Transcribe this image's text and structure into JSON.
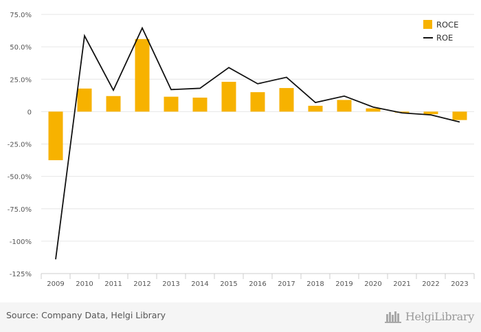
{
  "chart_data": {
    "type": "bar",
    "categories": [
      "2009",
      "2010",
      "2011",
      "2012",
      "2013",
      "2014",
      "2015",
      "2016",
      "2017",
      "2018",
      "2019",
      "2020",
      "2021",
      "2022",
      "2023"
    ],
    "series": [
      {
        "name": "ROCE",
        "type": "bar",
        "color": "#f7b200",
        "values": [
          -37.5,
          17.8,
          12.0,
          56.0,
          11.5,
          10.8,
          23.0,
          15.0,
          18.2,
          4.5,
          9.0,
          2.5,
          -0.8,
          -2.0,
          -6.5
        ]
      },
      {
        "name": "ROE",
        "type": "line",
        "color": "#111111",
        "values": [
          -114,
          58.5,
          16.5,
          64.5,
          17.0,
          18.0,
          34.0,
          21.5,
          26.5,
          7.0,
          12.0,
          3.5,
          -1.0,
          -2.5,
          -8.0
        ]
      }
    ],
    "ylim": [
      -125,
      75
    ],
    "yticks": [
      "75.0%",
      "50.0%",
      "25.0%",
      "0",
      "-25.0%",
      "-50.0%",
      "-75.0%",
      "-100%",
      "-125%"
    ],
    "ytick_values": [
      75,
      50,
      25,
      0,
      -25,
      -50,
      -75,
      -100,
      -125
    ],
    "grid": true,
    "legend": "top-right",
    "xlabel": "",
    "ylabel": "",
    "title": ""
  },
  "footer": {
    "source": "Source: Company Data, Helgi Library",
    "brand": "HelgiLibrary"
  }
}
